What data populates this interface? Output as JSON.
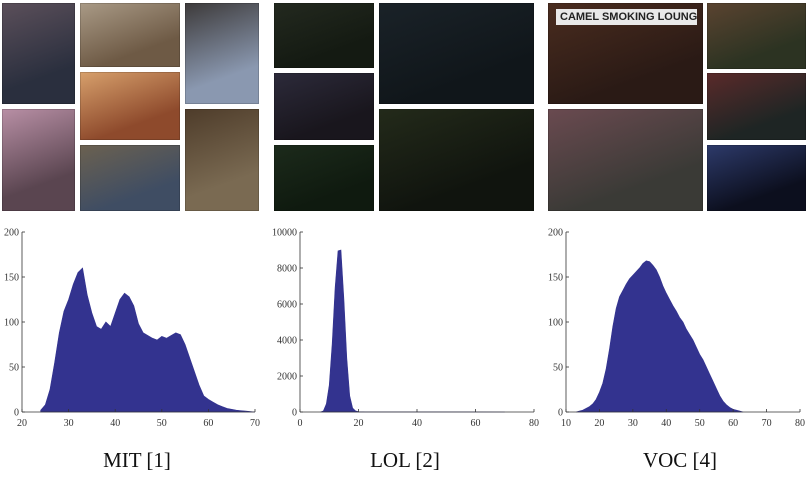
{
  "panels": [
    {
      "caption": "MIT [1]",
      "photos": [
        {
          "color": "#2a2f3e",
          "color2": "#5b4f5a",
          "label": ""
        },
        {
          "color": "#6e5a45",
          "color2": "#a99a86",
          "label": ""
        },
        {
          "color": "#8a98b0",
          "color2": "#3d3a3a",
          "label": ""
        },
        {
          "color": "#8e4a2c",
          "color2": "#d7a06c",
          "label": ""
        },
        {
          "color": "#5a4550",
          "color2": "#b88fa5",
          "label": ""
        },
        {
          "color": "#3f4d63",
          "color2": "#6b6150",
          "label": ""
        },
        {
          "color": "#7a6a52",
          "color2": "#4e3c2a",
          "label": ""
        }
      ]
    },
    {
      "caption": "LOL [2]",
      "photos": [
        {
          "color": "#141a12",
          "color2": "#23291f",
          "label": ""
        },
        {
          "color": "#10161a",
          "color2": "#1a2228",
          "label": ""
        },
        {
          "color": "#19161d",
          "color2": "#2c2a3a",
          "label": ""
        },
        {
          "color": "#0f1a0f",
          "color2": "#1c2a1b",
          "label": ""
        },
        {
          "color": "#10140e",
          "color2": "#232a1a",
          "label": ""
        }
      ]
    },
    {
      "caption": "VOC [4]",
      "photos": [
        {
          "color": "#2a1a15",
          "color2": "#4a2c1f",
          "label": "CAMEL SMOKING LOUNGE"
        },
        {
          "color": "#2c3322",
          "color2": "#5a4330",
          "label": ""
        },
        {
          "color": "#3a3a36",
          "color2": "#6a4a50",
          "label": ""
        },
        {
          "color": "#1e2524",
          "color2": "#5a2a2a",
          "label": ""
        },
        {
          "color": "#0c0f1e",
          "color2": "#2d3a6a",
          "label": ""
        }
      ]
    }
  ],
  "bar_color": "#33338f",
  "chart_data": [
    {
      "type": "area",
      "title": "MIT [1]",
      "xlabel": "",
      "ylabel": "",
      "xlim": [
        20,
        70
      ],
      "ylim": [
        0,
        200
      ],
      "xticks": [
        20,
        30,
        40,
        50,
        60,
        70
      ],
      "yticks": [
        0,
        50,
        100,
        150,
        200
      ],
      "x": [
        24,
        25,
        26,
        27,
        28,
        29,
        30,
        31,
        32,
        33,
        34,
        35,
        36,
        37,
        38,
        39,
        40,
        41,
        42,
        43,
        44,
        45,
        46,
        47,
        48,
        49,
        50,
        51,
        52,
        53,
        54,
        55,
        56,
        57,
        58,
        59,
        60,
        61,
        62,
        63,
        64,
        65,
        66,
        67,
        68,
        69,
        70
      ],
      "y": [
        2,
        8,
        25,
        55,
        88,
        112,
        125,
        142,
        155,
        160,
        130,
        110,
        95,
        92,
        100,
        95,
        110,
        125,
        132,
        128,
        118,
        98,
        88,
        85,
        82,
        80,
        84,
        82,
        85,
        88,
        86,
        75,
        60,
        45,
        30,
        18,
        14,
        11,
        8,
        6,
        4,
        3,
        2,
        1.5,
        1,
        0.5,
        0
      ]
    },
    {
      "type": "area",
      "title": "LOL [2]",
      "xlabel": "",
      "ylabel": "",
      "xlim": [
        0,
        80
      ],
      "ylim": [
        0,
        10000
      ],
      "xticks": [
        0,
        20,
        40,
        60,
        80
      ],
      "yticks": [
        0,
        2000,
        4000,
        6000,
        8000,
        10000
      ],
      "x": [
        7,
        8,
        9,
        10,
        11,
        12,
        13,
        14,
        15,
        16,
        17,
        18,
        19,
        20,
        22,
        30,
        40,
        50,
        60,
        70
      ],
      "y": [
        0,
        60,
        450,
        1500,
        3800,
        6900,
        8950,
        9000,
        6300,
        3000,
        900,
        220,
        60,
        20,
        10,
        5,
        4,
        3,
        2,
        0
      ]
    },
    {
      "type": "area",
      "title": "VOC [4]",
      "xlabel": "",
      "ylabel": "",
      "xlim": [
        10,
        80
      ],
      "ylim": [
        0,
        200
      ],
      "xticks": [
        10,
        20,
        30,
        40,
        50,
        60,
        70,
        80
      ],
      "yticks": [
        0,
        50,
        100,
        150,
        200
      ],
      "x": [
        13,
        14,
        15,
        16,
        17,
        18,
        19,
        20,
        21,
        22,
        23,
        24,
        25,
        26,
        27,
        28,
        29,
        30,
        31,
        32,
        33,
        34,
        35,
        36,
        37,
        38,
        39,
        40,
        41,
        42,
        43,
        44,
        45,
        46,
        47,
        48,
        49,
        50,
        51,
        52,
        53,
        54,
        55,
        56,
        57,
        58,
        59,
        60,
        61,
        62,
        63
      ],
      "y": [
        0,
        1,
        2,
        4,
        6,
        9,
        14,
        22,
        32,
        48,
        70,
        95,
        115,
        128,
        135,
        142,
        148,
        152,
        156,
        160,
        165,
        168,
        167,
        163,
        158,
        150,
        140,
        132,
        125,
        118,
        112,
        105,
        100,
        92,
        86,
        80,
        72,
        64,
        58,
        50,
        42,
        34,
        26,
        18,
        12,
        8,
        5,
        3,
        2,
        1,
        0
      ]
    }
  ]
}
